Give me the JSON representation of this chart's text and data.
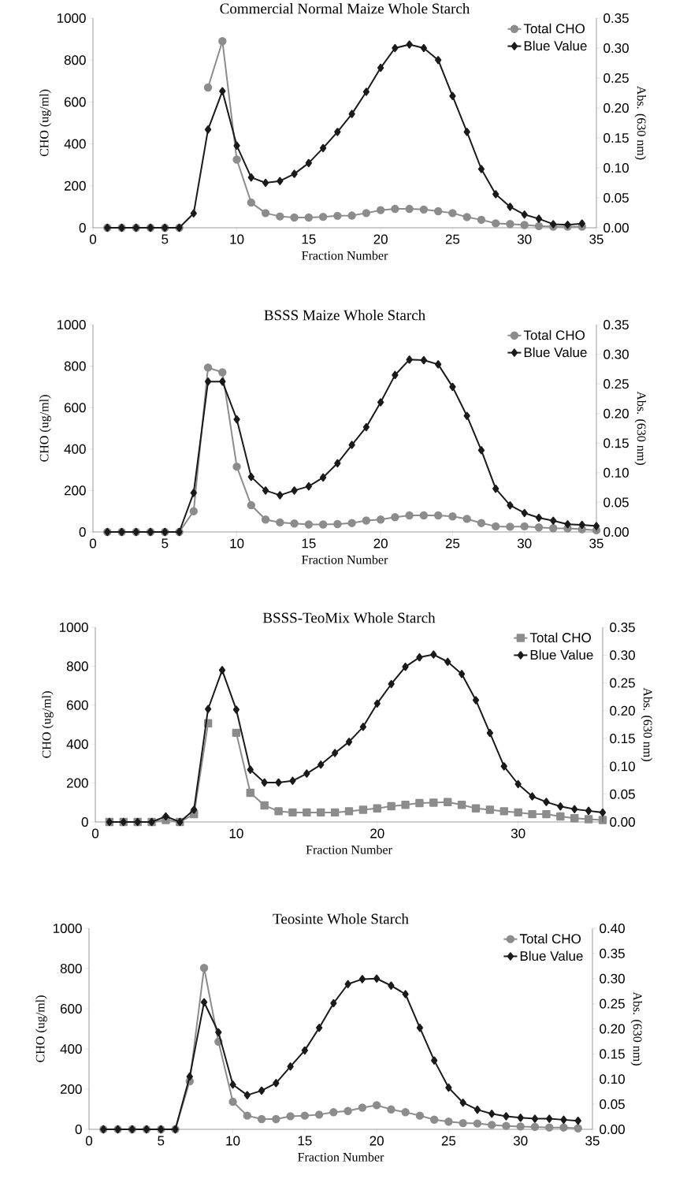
{
  "chart_data": [
    {
      "type": "line",
      "title": "Commercial Normal Maize Whole Starch",
      "xlabel": "Fraction Number",
      "ylabel": "CHO  (ug/ml)",
      "y2label": "Abs. (630 nm)",
      "x": [
        1,
        2,
        3,
        4,
        5,
        6,
        7,
        8,
        9,
        10,
        11,
        12,
        13,
        14,
        15,
        16,
        17,
        18,
        19,
        20,
        21,
        22,
        23,
        24,
        25,
        26,
        27,
        28,
        29,
        30,
        31,
        32,
        33,
        34
      ],
      "xlim": [
        0,
        35
      ],
      "xticks": [
        0,
        5,
        10,
        15,
        20,
        25,
        30,
        35
      ],
      "ylim": [
        0,
        1000
      ],
      "yticks": [
        0,
        200,
        400,
        600,
        800,
        1000
      ],
      "y2lim": [
        0,
        0.35
      ],
      "y2ticks": [
        {
          "value": 0,
          "label": "0.00"
        },
        {
          "value": 0.05,
          "label": "0.05"
        },
        {
          "value": 0.1,
          "label": "0.10"
        },
        {
          "value": 0.15,
          "label": "0.15"
        },
        {
          "value": 0.2,
          "label": "0.20"
        },
        {
          "value": 0.25,
          "label": "0.25"
        },
        {
          "value": 0.3,
          "label": "0.30"
        },
        {
          "value": 0.35,
          "label": "0.35"
        }
      ],
      "legend": "top right",
      "line_style": "solid",
      "series": [
        {
          "name": "Total CHO",
          "color": "#8c8c8c",
          "marker": "circle",
          "values": [
            0,
            0,
            0,
            0,
            0,
            0,
            null,
            669,
            890,
            325,
            120,
            70,
            54,
            49,
            49,
            52,
            57,
            58,
            70,
            84,
            90,
            90,
            87,
            79,
            70,
            51,
            38,
            21,
            18,
            13,
            8,
            5,
            5,
            5
          ]
        },
        {
          "name": "Blue Value",
          "color": "#1a1a1a",
          "marker": "diamond",
          "axis": "y2",
          "values": [
            0,
            0,
            0,
            0,
            0,
            0,
            0.024,
            0.164,
            0.228,
            0.137,
            0.084,
            0.075,
            0.078,
            0.09,
            0.108,
            0.133,
            0.16,
            0.19,
            0.227,
            0.267,
            0.3,
            0.306,
            0.3,
            0.28,
            0.22,
            0.16,
            0.098,
            0.056,
            0.035,
            0.022,
            0.015,
            0.006,
            0.005,
            0.007
          ]
        }
      ]
    },
    {
      "type": "line",
      "title": "BSSS Maize Whole Starch",
      "xlabel": "Fraction Number",
      "ylabel": "CHO (ug/ml)",
      "y2label": "Abs. (630 nm)",
      "x": [
        1,
        2,
        3,
        4,
        5,
        6,
        7,
        8,
        9,
        10,
        11,
        12,
        13,
        14,
        15,
        16,
        17,
        18,
        19,
        20,
        21,
        22,
        23,
        24,
        25,
        26,
        27,
        28,
        29,
        30,
        31,
        32,
        33,
        34,
        35
      ],
      "xlim": [
        0,
        35
      ],
      "xticks": [
        0,
        5,
        10,
        15,
        20,
        25,
        30,
        35
      ],
      "ylim": [
        0,
        1000
      ],
      "yticks": [
        0,
        200,
        400,
        600,
        800,
        1000
      ],
      "y2lim": [
        0,
        0.35
      ],
      "y2ticks": [
        {
          "value": 0,
          "label": "0.00"
        },
        {
          "value": 0.05,
          "label": "0.05"
        },
        {
          "value": 0.1,
          "label": "0.10"
        },
        {
          "value": 0.15,
          "label": "0.15"
        },
        {
          "value": 0.2,
          "label": "0.20"
        },
        {
          "value": 0.25,
          "label": "0.25"
        },
        {
          "value": 0.3,
          "label": "0.30"
        },
        {
          "value": 0.35,
          "label": "0.35"
        }
      ],
      "legend": "top right",
      "line_style": "solid",
      "series": [
        {
          "name": "Total CHO",
          "color": "#8c8c8c",
          "marker": "circle",
          "values": [
            0,
            0,
            0,
            0,
            0,
            0,
            100,
            793,
            770,
            315,
            129,
            60,
            46,
            41,
            36,
            36,
            38,
            43,
            55,
            60,
            71,
            80,
            80,
            80,
            75,
            63,
            43,
            27,
            25,
            27,
            22,
            18,
            17,
            13,
            8
          ]
        },
        {
          "name": "Blue Value",
          "color": "#1a1a1a",
          "marker": "diamond",
          "axis": "y2",
          "values": [
            0,
            0,
            0,
            0,
            0,
            0,
            0.066,
            0.254,
            0.254,
            0.19,
            0.093,
            0.07,
            0.062,
            0.07,
            0.077,
            0.092,
            0.116,
            0.147,
            0.177,
            0.219,
            0.265,
            0.291,
            0.29,
            0.283,
            0.245,
            0.196,
            0.138,
            0.073,
            0.045,
            0.032,
            0.024,
            0.019,
            0.013,
            0.012,
            0.01
          ]
        }
      ]
    },
    {
      "type": "line",
      "title": "BSSS-TeoMix Whole Starch",
      "xlabel": "Fraction Number",
      "ylabel": "CHO (ug/ml)",
      "y2label": "Abs. (630 nm)",
      "x": [
        1,
        2,
        3,
        4,
        5,
        6,
        7,
        8,
        9,
        10,
        11,
        12,
        13,
        14,
        15,
        16,
        17,
        18,
        19,
        20,
        21,
        22,
        23,
        24,
        25,
        26,
        27,
        28,
        29,
        30,
        31,
        32,
        33,
        34,
        35,
        36
      ],
      "xlim": [
        0,
        36
      ],
      "xticks": [
        0,
        10,
        20,
        30
      ],
      "ylim": [
        0,
        1000
      ],
      "yticks": [
        0,
        200,
        400,
        600,
        800,
        1000
      ],
      "y2lim": [
        0,
        0.35
      ],
      "y2ticks": [
        {
          "value": 0,
          "label": "0.00"
        },
        {
          "value": 0.05,
          "label": "0.05"
        },
        {
          "value": 0.1,
          "label": "0.10"
        },
        {
          "value": 0.15,
          "label": "0.15"
        },
        {
          "value": 0.2,
          "label": "0.20"
        },
        {
          "value": 0.25,
          "label": "0.25"
        },
        {
          "value": 0.3,
          "label": "0.30"
        },
        {
          "value": 0.35,
          "label": "0.35"
        }
      ],
      "legend": "top right",
      "line_style": "solid",
      "series": [
        {
          "name": "Total CHO",
          "color": "#8c8c8c",
          "marker": "square",
          "values": [
            0,
            0,
            0,
            0,
            10,
            0,
            40,
            507,
            null,
            458,
            150,
            85,
            55,
            49,
            49,
            49,
            49,
            55,
            63,
            70,
            81,
            88,
            97,
            99,
            102,
            88,
            70,
            63,
            55,
            49,
            40,
            40,
            28,
            19,
            14,
            10
          ]
        },
        {
          "name": "Blue Value",
          "color": "#1a1a1a",
          "marker": "diamond",
          "axis": "y2",
          "values": [
            0,
            0,
            0,
            0,
            0.01,
            0,
            0.022,
            0.203,
            0.273,
            0.202,
            0.094,
            0.071,
            0.071,
            0.074,
            0.087,
            0.103,
            0.124,
            0.144,
            0.171,
            0.213,
            0.248,
            0.279,
            0.296,
            0.301,
            0.288,
            0.266,
            0.219,
            0.16,
            0.1,
            0.068,
            0.046,
            0.036,
            0.028,
            0.023,
            0.02,
            0.017
          ]
        }
      ]
    },
    {
      "type": "line",
      "title": "Teosinte Whole Starch",
      "xlabel": "Fraction Number",
      "ylabel": "CHO (ug/ml)",
      "y2label": "Abs. (630 nm)",
      "x": [
        1,
        2,
        3,
        4,
        5,
        6,
        7,
        8,
        9,
        10,
        11,
        12,
        13,
        14,
        15,
        16,
        17,
        18,
        19,
        20,
        21,
        22,
        23,
        24,
        25,
        26,
        27,
        28,
        29,
        30,
        31,
        32,
        33,
        34
      ],
      "xlim": [
        0,
        35
      ],
      "xticks": [
        0,
        5,
        10,
        15,
        20,
        25,
        30,
        35
      ],
      "ylim": [
        0,
        1000
      ],
      "yticks": [
        0,
        200,
        400,
        600,
        800,
        1000
      ],
      "y2lim": [
        0,
        0.4
      ],
      "y2ticks": [
        {
          "value": 0,
          "label": "0.00"
        },
        {
          "value": 0.05,
          "label": "0.05"
        },
        {
          "value": 0.1,
          "label": "0.10"
        },
        {
          "value": 0.15,
          "label": "0.15"
        },
        {
          "value": 0.2,
          "label": "0.20"
        },
        {
          "value": 0.25,
          "label": "0.25"
        },
        {
          "value": 0.3,
          "label": "0.30"
        },
        {
          "value": 0.35,
          "label": "0.35"
        },
        {
          "value": 0.4,
          "label": "0.40"
        }
      ],
      "legend": "top right",
      "line_style": "solid",
      "series": [
        {
          "name": "Total CHO",
          "color": "#8c8c8c",
          "marker": "circle",
          "values": [
            0,
            0,
            0,
            0,
            0,
            0,
            239,
            803,
            436,
            137,
            68,
            51,
            51,
            65,
            68,
            73,
            85,
            91,
            108,
            120,
            99,
            85,
            68,
            48,
            38,
            31,
            29,
            22,
            17,
            14,
            12,
            9,
            9,
            5
          ]
        },
        {
          "name": "Blue Value",
          "color": "#1a1a1a",
          "marker": "diamond",
          "axis": "y2",
          "values": [
            0,
            0,
            0,
            0,
            0,
            0,
            0.105,
            0.253,
            0.193,
            0.089,
            0.068,
            0.077,
            0.092,
            0.125,
            0.157,
            0.202,
            0.251,
            0.289,
            0.299,
            0.3,
            0.286,
            0.269,
            0.202,
            0.137,
            0.083,
            0.053,
            0.039,
            0.031,
            0.026,
            0.023,
            0.021,
            0.021,
            0.019,
            0.017
          ]
        }
      ]
    }
  ]
}
